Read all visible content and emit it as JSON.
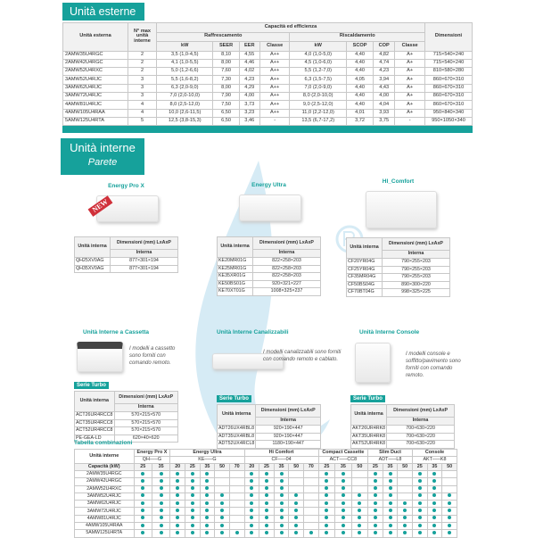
{
  "colors": {
    "accent": "#16a19b",
    "watermark": "#4aa6d4"
  },
  "outdoor": {
    "heading": "Unità esterne",
    "headers": {
      "model": "Unità esterna",
      "nmax": "N° max unità interne",
      "capacity": "Capacità ed efficienza",
      "cooling": "Raffrescamento",
      "heating": "Riscaldamento",
      "dimensions": "Dimensioni",
      "kw": "kW",
      "seer": "SEER",
      "eer": "EER",
      "classe": "Classe",
      "scop": "SCOP",
      "cop": "COP"
    },
    "rows": [
      [
        "2AMW35U4RGC",
        "2",
        "3,5 (1,0-4,5)",
        "8,10",
        "4,55",
        "A++",
        "4,0 (1,0-5,0)",
        "4,40",
        "4,82",
        "A+",
        "715×540×240"
      ],
      [
        "2AMW42U4RGC",
        "2",
        "4,1 (1,0-5,5)",
        "8,00",
        "4,46",
        "A++",
        "4,5 (1,0-6,0)",
        "4,40",
        "4,74",
        "A+",
        "715×540×240"
      ],
      [
        "2AMW52U4RXC",
        "2",
        "5,0 (1,2-6,6)",
        "7,60",
        "4,02",
        "A++",
        "5,5 (1,2-7,0)",
        "4,40",
        "4,23",
        "A+",
        "810×580×280"
      ],
      [
        "3AMW52U4RJC",
        "3",
        "5,5 (1,6-8,2)",
        "7,30",
        "4,23",
        "A++",
        "6,3 (1,5-7,5)",
        "4,05",
        "3,94",
        "A+",
        "860×670×310"
      ],
      [
        "3AMW62U4RJC",
        "3",
        "6,3 (2,0-9,0)",
        "8,00",
        "4,29",
        "A++",
        "7,0 (2,0-9,0)",
        "4,40",
        "4,43",
        "A+",
        "860×670×310"
      ],
      [
        "3AMW72U4RJC",
        "3",
        "7,0 (2,0-10,0)",
        "7,90",
        "4,00",
        "A++",
        "8,0 (2,0-10,0)",
        "4,40",
        "4,00",
        "A+",
        "860×670×310"
      ],
      [
        "4AMW81U4RJC",
        "4",
        "8,0 (2,5-12,0)",
        "7,50",
        "3,73",
        "A++",
        "9,0 (2,5-12,0)",
        "4,40",
        "4,04",
        "A+",
        "860×670×310"
      ],
      [
        "4AMW105U4RAA",
        "4",
        "10,0 (2,6-11,5)",
        "6,50",
        "3,23",
        "A++",
        "11,0 (2,2-12,0)",
        "4,01",
        "3,93",
        "A+",
        "950×840×340"
      ],
      [
        "5AMW125U4RTA",
        "5",
        "12,5 (3,8-15,3)",
        "6,50",
        "3,46",
        "-",
        "13,5 (6,7-17,2)",
        "3,72",
        "3,75",
        "-",
        "950×1050×340"
      ]
    ]
  },
  "indoor": {
    "heading": "Unità interne",
    "subheading": "Parete",
    "hdr": {
      "unit": "Unità interna",
      "dims": "Dimensioni (mm) LxAxP",
      "inner": "Interna"
    },
    "new_badge": "NEW",
    "wall": [
      {
        "title": "Energy Pro X",
        "rows": [
          [
            "QH25XV0AG",
            "877×301×194"
          ],
          [
            "QH35XV0AG",
            "877×301×194"
          ]
        ]
      },
      {
        "title": "Energy Ultra",
        "rows": [
          [
            "KE20MR01G",
            "822×258×203"
          ],
          [
            "KE25MR01G",
            "822×258×203"
          ],
          [
            "KE35XR01G",
            "822×258×203"
          ],
          [
            "KE50BS01G",
            "920×321×227"
          ],
          [
            "KE70XT01G",
            "1008×325×237"
          ]
        ]
      },
      {
        "title": "HI_Comfort",
        "rows": [
          [
            "CF20YR04G",
            "790×255×203"
          ],
          [
            "CF25YR04G",
            "790×255×203"
          ],
          [
            "CF35MR04G",
            "790×255×203"
          ],
          [
            "CF50BS04G",
            "890×300×220"
          ],
          [
            "CF70BT04G",
            "998×325×225"
          ]
        ]
      }
    ],
    "other": [
      {
        "title": "Unità Interne a Cassetta",
        "desc": "I modelli a cassetto sono forniti con comando remoto.",
        "series": "Serie Turbo",
        "rows": [
          [
            "ACT26UR4RCC8",
            "570×215×570"
          ],
          [
            "ACT35UR4RCC8",
            "570×215×570"
          ],
          [
            "ACT52UR4RCC8",
            "570×215×570"
          ],
          [
            "PE-GEA-LD",
            "620×40×620"
          ]
        ]
      },
      {
        "title": "Unità Interne Canalizzabili",
        "desc": "I modelli canalizzabili sono forniti con comando remoto e cablato.",
        "series": "Serie Turbo",
        "rows": [
          [
            "ADT26UX4RBL8",
            "920×190×447"
          ],
          [
            "ADT35UX4RBL8",
            "920×190×447"
          ],
          [
            "ADT52UX4RCL8",
            "1180×190×447"
          ]
        ]
      },
      {
        "title": "Unità Interne Console",
        "desc": "I modelli console e soffitto/pavimento sono forniti con comando remoto.",
        "series": "Serie Turbo",
        "rows": [
          [
            "AKT26UR4RK8",
            "700×630×220"
          ],
          [
            "AKT35UR4RK8",
            "700×630×220"
          ],
          [
            "AKT52UR4RK8",
            "700×630×220"
          ]
        ]
      }
    ]
  },
  "combo": {
    "title": "Tabella combinazioni",
    "unit_label": "Unità interne",
    "cap_label": "Capacità (kW)",
    "groups": [
      {
        "name": "Energy Pro X",
        "code": "QH–––G",
        "caps": [
          "25",
          "35"
        ]
      },
      {
        "name": "Energy Ultra",
        "code": "KE–––G",
        "caps": [
          "20",
          "25",
          "35",
          "50",
          "70"
        ]
      },
      {
        "name": "Hi Comfort",
        "code": "CF–––04",
        "caps": [
          "20",
          "25",
          "35",
          "50",
          "70"
        ]
      },
      {
        "name": "Compact Cassette",
        "code": "ACT–––CC8",
        "caps": [
          "25",
          "35",
          "50"
        ]
      },
      {
        "name": "Slim Duct",
        "code": "ADT–––L8",
        "caps": [
          "25",
          "35",
          "50"
        ]
      },
      {
        "name": "Console",
        "code": "AKT–––K8",
        "caps": [
          "25",
          "35",
          "50"
        ]
      }
    ],
    "rows": [
      {
        "model": "2AMW35U4RGC",
        "m": "111110011100110110110"
      },
      {
        "model": "2AMW42U4RGC",
        "m": "111110011100110110110"
      },
      {
        "model": "2AMW52U4RXC",
        "m": "111110011100110110110"
      },
      {
        "model": "3AMW52U4RJC",
        "m": "111111011110111110111"
      },
      {
        "model": "3AMW62U4RJC",
        "m": "111111011110111111111"
      },
      {
        "model": "3AMW72U4RJC",
        "m": "111111011110111111111"
      },
      {
        "model": "4AMW81U4RJC",
        "m": "111111011110111111111"
      },
      {
        "model": "4AMW105U4RAA",
        "m": "111111011110111111111"
      },
      {
        "model": "5AMW125U4RTA",
        "m": "111111111111111111111"
      }
    ]
  }
}
